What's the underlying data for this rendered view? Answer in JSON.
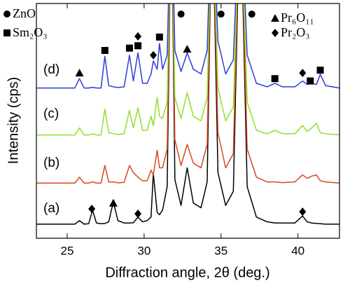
{
  "chart_data": {
    "type": "line",
    "x_label": "Diffraction angle, 2θ (deg.)",
    "y_label": "Intensity (cps)",
    "xlim": [
      23,
      42.7
    ],
    "xticks": [
      25,
      30,
      35,
      40
    ],
    "ylim": [
      0,
      100
    ],
    "x": [
      23,
      25.5,
      25.8,
      26.1,
      26.4,
      26.65,
      26.9,
      27.2,
      27.45,
      27.7,
      28.0,
      28.3,
      28.7,
      29.05,
      29.3,
      29.6,
      29.9,
      30.2,
      30.45,
      30.6,
      30.85,
      31.0,
      31.2,
      31.5,
      31.77,
      32.0,
      32.4,
      32.8,
      33.2,
      33.7,
      34.1,
      34.42,
      34.8,
      35.3,
      35.8,
      36.25,
      36.7,
      37.3,
      38.0,
      38.5,
      39.0,
      39.8,
      40.3,
      40.6,
      40.9,
      41.2,
      41.45,
      41.8,
      42.7
    ],
    "series": [
      {
        "name": "(a)",
        "color": "#000000",
        "values": [
          6,
          6,
          7.5,
          6,
          6.2,
          12,
          6.5,
          6.2,
          6.3,
          7,
          15.5,
          7.5,
          6.5,
          6.5,
          6.6,
          9,
          7,
          7.5,
          9,
          27.5,
          11,
          10,
          12,
          22,
          150,
          25,
          14,
          30,
          15,
          13,
          24,
          150,
          28,
          14,
          20,
          150,
          22,
          9,
          7,
          6.5,
          6.5,
          6.5,
          9.5,
          7,
          6.5,
          6.3,
          6.2,
          6,
          6
        ]
      },
      {
        "name": "(b)",
        "color": "#d9461e",
        "values": [
          23.5,
          23.5,
          26,
          23.5,
          23.5,
          24,
          23.5,
          23.5,
          31,
          24,
          24,
          23.6,
          23.8,
          31,
          28,
          26,
          24.5,
          24.5,
          29,
          27,
          37.5,
          30,
          30,
          38,
          150,
          42,
          31,
          40,
          32,
          30,
          40,
          150,
          45,
          30,
          36,
          150,
          38,
          26,
          24,
          24,
          23.7,
          24,
          27,
          25.5,
          26.5,
          27,
          24.5,
          24,
          23.5
        ]
      },
      {
        "name": "(c)",
        "color": "#8ee02a",
        "values": [
          44,
          44,
          47,
          44,
          44,
          44.5,
          44,
          44,
          55,
          45,
          44.5,
          44.2,
          44.5,
          54.5,
          47,
          55.5,
          46,
          46,
          52,
          48,
          60,
          52,
          51,
          58,
          150,
          60,
          51,
          62,
          52,
          50,
          60,
          150,
          64,
          50,
          56,
          150,
          58,
          46,
          44.5,
          46,
          44.5,
          44.5,
          48,
          45.5,
          47,
          49,
          45,
          44.5,
          44
        ]
      },
      {
        "name": "(d)",
        "color": "#2a3ed8",
        "values": [
          64,
          64,
          68,
          64,
          64,
          64.3,
          64,
          64,
          77.5,
          65,
          64.5,
          64.2,
          64.5,
          78,
          67,
          79,
          66,
          66,
          70,
          75.5,
          72,
          83,
          72,
          78,
          150,
          80,
          71,
          79,
          72,
          70,
          80,
          150,
          84,
          70,
          76,
          150,
          78,
          66,
          64.5,
          66,
          64.5,
          64.5,
          67,
          65.5,
          66,
          65.5,
          69.8,
          65,
          64
        ]
      }
    ],
    "annotations": [
      {
        "label": "ZnO",
        "x": [
          32.4,
          35.0,
          37.0
        ],
        "y": [
          95.5,
          95.5,
          95.5
        ]
      },
      {
        "label": "Sm₂O₃",
        "x": [
          27.45,
          29.05,
          29.6,
          31.0,
          38.5,
          40.8,
          41.45
        ],
        "y": [
          80,
          81,
          82,
          85.7,
          68,
          67,
          71.6
        ]
      },
      {
        "label": "Pr₆O₁₁",
        "x": [
          25.8,
          32.8,
          28.0
        ],
        "y": [
          70.4,
          80.6,
          15
        ]
      },
      {
        "label": "Pr₂O₃",
        "x": [
          29.6,
          30.6,
          40.3,
          26.6,
          29.6,
          40.3
        ],
        "y": [
          86,
          78,
          70.4,
          12.5,
          10.4,
          11.3
        ]
      }
    ]
  }
}
